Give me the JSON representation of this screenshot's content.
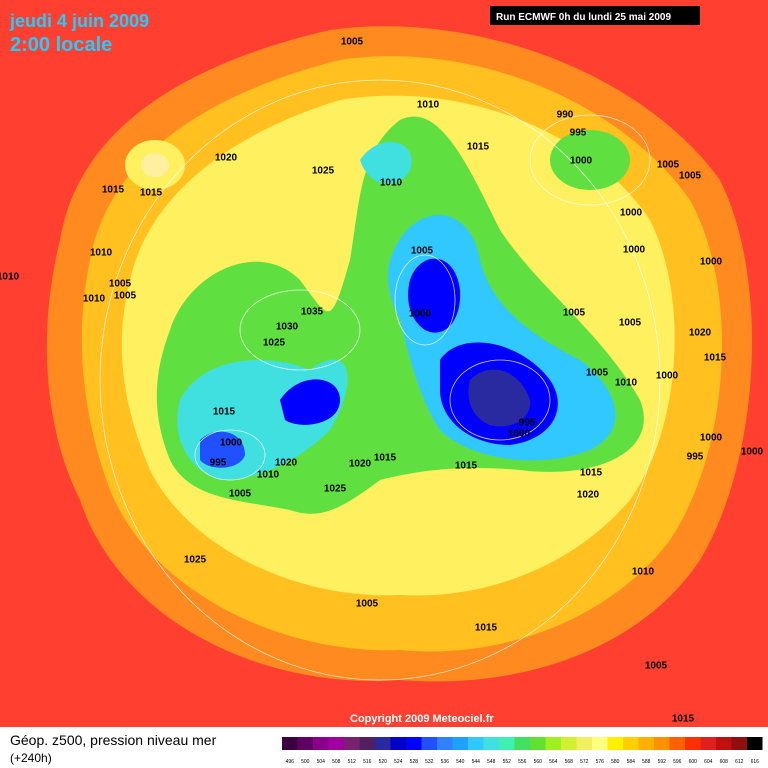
{
  "header": {
    "date": "jeudi 4 juin 2009",
    "time": "2:00 locale",
    "run": "Run ECMWF 0h du lundi 25 mai 2009"
  },
  "footer": {
    "field": "Géop. z500, pression niveau mer",
    "lead": "(+240h)",
    "copyright": "Copyright 2009 Meteociel.fr"
  },
  "legend": {
    "ticks": [
      496,
      500,
      504,
      508,
      512,
      516,
      520,
      524,
      528,
      532,
      536,
      540,
      544,
      548,
      552,
      556,
      560,
      564,
      568,
      572,
      576,
      580,
      584,
      588,
      592,
      596,
      600,
      604,
      608,
      612,
      616
    ],
    "colors": [
      "#3a0040",
      "#600060",
      "#8a008a",
      "#a000a0",
      "#7a2070",
      "#502060",
      "#2a2aa0",
      "#0000c8",
      "#0000ff",
      "#2050ff",
      "#3080ff",
      "#20a0ff",
      "#30c8ff",
      "#40e0e0",
      "#40f0b0",
      "#40e060",
      "#60e030",
      "#a0f020",
      "#d0f030",
      "#f0f060",
      "#ffff80",
      "#fff000",
      "#ffd000",
      "#ffb000",
      "#ff9000",
      "#ff6000",
      "#ff3000",
      "#e02020",
      "#c01010",
      "#901010",
      "#000000"
    ]
  },
  "isobar_labels": [
    1005,
    1010,
    990,
    995,
    1015,
    1020,
    1025,
    1010,
    1000,
    1005,
    1005,
    1015,
    1015,
    1000,
    1005,
    1000,
    1010,
    1000,
    1010,
    1005,
    1005,
    1010,
    1035,
    1000,
    1005,
    1005,
    1030,
    1020,
    1025,
    1015,
    1005,
    1010,
    1000,
    1015,
    995,
    1000,
    1000,
    1000,
    995,
    1000,
    1020,
    1020,
    1015,
    995,
    1010,
    1015,
    1015,
    1025,
    1005,
    1020,
    1025,
    1010,
    1005,
    1015,
    1005,
    1015
  ]
}
